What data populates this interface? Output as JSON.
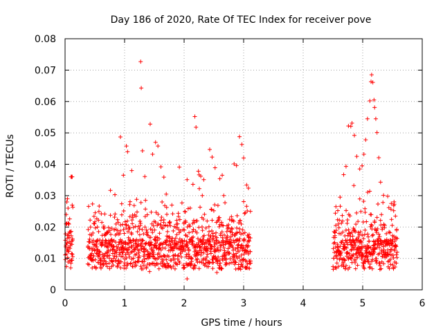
{
  "chart_data": {
    "type": "scatter",
    "title": "Day 186 of 2020, Rate Of TEC Index for receiver pove",
    "xlabel": "GPS time / hours",
    "ylabel": "ROTI / TECUs",
    "xlim": [
      0,
      6
    ],
    "ylim": [
      0,
      0.08
    ],
    "xticks": [
      0,
      1,
      2,
      3,
      4,
      5,
      6
    ],
    "xtick_labels": [
      "0",
      "1",
      "2",
      "3",
      "4",
      "5",
      "6"
    ],
    "yticks": [
      0,
      0.01,
      0.02,
      0.03,
      0.04,
      0.05,
      0.06,
      0.07,
      0.08
    ],
    "ytick_labels": [
      "0",
      "0.01",
      "0.02",
      "0.03",
      "0.04",
      "0.05",
      "0.06",
      "0.07",
      "0.08"
    ],
    "grid": true,
    "marker": "+",
    "color": "#ff0000",
    "series": [
      {
        "name": "ROTI",
        "segments": [
          [
            0.0,
            0.13
          ],
          [
            0.38,
            3.12
          ],
          [
            4.5,
            5.58
          ]
        ],
        "points": [
          [
            0.02,
            0.024
          ],
          [
            0.03,
            0.028
          ],
          [
            0.04,
            0.029
          ],
          [
            0.05,
            0.026
          ],
          [
            0.06,
            0.021
          ],
          [
            0.1,
            0.036
          ],
          [
            0.11,
            0.036
          ],
          [
            0.12,
            0.036
          ],
          [
            0.12,
            0.027
          ],
          [
            0.13,
            0.0263
          ],
          [
            0.93,
            0.0487
          ],
          [
            0.98,
            0.0365
          ],
          [
            1.03,
            0.0458
          ],
          [
            1.05,
            0.044
          ],
          [
            1.12,
            0.038
          ],
          [
            1.27,
            0.0727
          ],
          [
            1.28,
            0.0643
          ],
          [
            1.3,
            0.0443
          ],
          [
            1.34,
            0.0361
          ],
          [
            1.43,
            0.0528
          ],
          [
            1.47,
            0.0432
          ],
          [
            1.52,
            0.047
          ],
          [
            1.56,
            0.0458
          ],
          [
            1.61,
            0.0392
          ],
          [
            1.66,
            0.0359
          ],
          [
            1.7,
            0.0305
          ],
          [
            1.92,
            0.0391
          ],
          [
            2.05,
            0.0351
          ],
          [
            2.18,
            0.0552
          ],
          [
            2.2,
            0.0518
          ],
          [
            2.24,
            0.0378
          ],
          [
            2.28,
            0.0362
          ],
          [
            2.33,
            0.0351
          ],
          [
            2.43,
            0.0447
          ],
          [
            2.47,
            0.0423
          ],
          [
            2.52,
            0.0389
          ],
          [
            2.6,
            0.0354
          ],
          [
            2.64,
            0.0365
          ],
          [
            2.84,
            0.0401
          ],
          [
            2.88,
            0.0396
          ],
          [
            2.93,
            0.0488
          ],
          [
            2.97,
            0.0463
          ],
          [
            3.0,
            0.042
          ],
          [
            3.05,
            0.0334
          ],
          [
            3.08,
            0.0324
          ],
          [
            2.05,
            0.0035
          ],
          [
            2.55,
            0.0055
          ],
          [
            1.42,
            0.0058
          ],
          [
            4.55,
            0.0265
          ],
          [
            4.62,
            0.0295
          ],
          [
            4.68,
            0.0367
          ],
          [
            4.72,
            0.0393
          ],
          [
            4.76,
            0.0522
          ],
          [
            4.8,
            0.0521
          ],
          [
            4.82,
            0.0531
          ],
          [
            4.86,
            0.0492
          ],
          [
            4.9,
            0.0425
          ],
          [
            4.95,
            0.0385
          ],
          [
            4.99,
            0.0395
          ],
          [
            5.02,
            0.0432
          ],
          [
            5.05,
            0.0478
          ],
          [
            5.08,
            0.0545
          ],
          [
            5.12,
            0.0602
          ],
          [
            5.14,
            0.0663
          ],
          [
            5.15,
            0.0685
          ],
          [
            5.17,
            0.0661
          ],
          [
            5.19,
            0.0605
          ],
          [
            5.2,
            0.0581
          ],
          [
            5.22,
            0.0545
          ],
          [
            5.24,
            0.0501
          ],
          [
            5.27,
            0.0421
          ],
          [
            5.3,
            0.0343
          ],
          [
            5.35,
            0.0301
          ],
          [
            5.42,
            0.0298
          ],
          [
            5.48,
            0.0275
          ],
          [
            5.52,
            0.0252
          ],
          [
            5.55,
            0.0235
          ]
        ]
      }
    ]
  }
}
